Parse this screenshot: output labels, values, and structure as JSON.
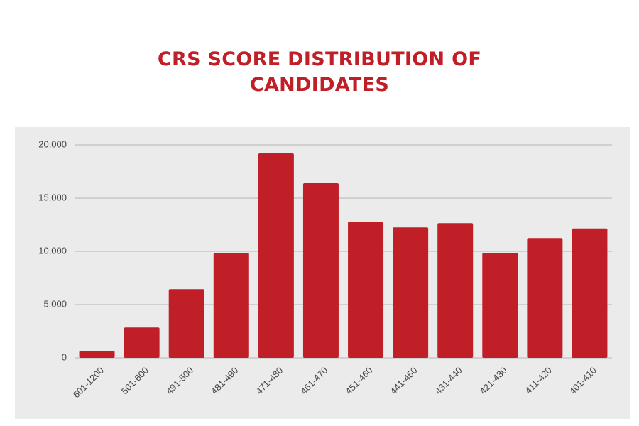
{
  "chart_data": {
    "type": "bar",
    "title": "CRS SCORE DISTRIBUTION OF CANDIDATES",
    "categories": [
      "601-1200",
      "501-600",
      "491-500",
      "481-490",
      "471-480",
      "461-470",
      "451-460",
      "441-450",
      "431-440",
      "421-430",
      "411-420",
      "401-410"
    ],
    "values": [
      650,
      2850,
      6450,
      9850,
      19200,
      16400,
      12800,
      12250,
      12650,
      9850,
      11250,
      12150
    ],
    "color": "#c01f28",
    "ylim": [
      0,
      20000
    ],
    "yticks": [
      0,
      {
        "value": 5000,
        "label": "5,000"
      },
      {
        "value": 10000,
        "label": "10,000"
      },
      {
        "value": 15000,
        "label": "15,000"
      },
      {
        "value": 20000,
        "label": "20,000"
      }
    ],
    "grid": true
  }
}
